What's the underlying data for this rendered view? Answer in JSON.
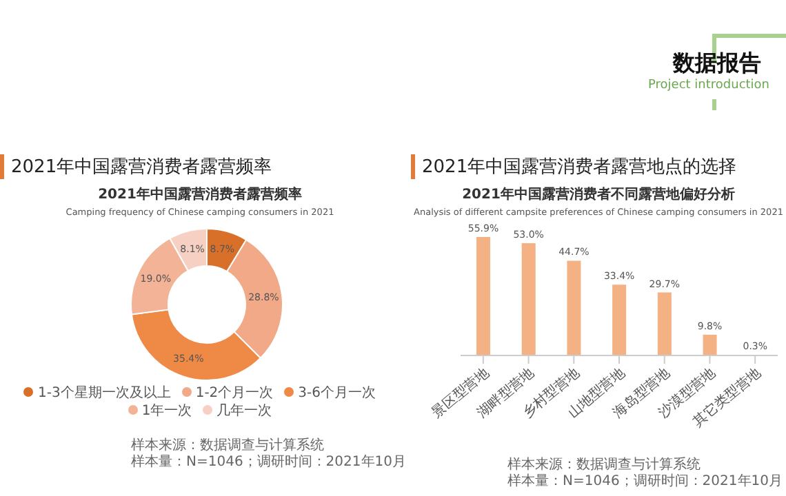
{
  "chart_data": [
    {
      "type": "other",
      "title": "数据报告",
      "subtitle": "Project introduction"
    },
    {
      "type": "donut",
      "title": "2021年中国露营消费者露营频率",
      "subtitle": "2021年中国露营消费者露营频率",
      "annotations": [
        "Camping frequency of Chinese camping consumers in 2021",
        "样本来源：数据调查与计算系统",
        "样本量：N=1046；调研时间：2021年10月"
      ],
      "categories": [
        "1-3个星期一次及以上",
        "1-2个月一次",
        "3-6个月一次",
        "1年一次",
        "几年一次"
      ],
      "values": [
        8.7,
        28.8,
        35.4,
        19.0,
        8.1
      ],
      "value_labels": [
        "8.7%",
        "28.8%",
        "35.4%",
        "19.0%",
        "8.1%"
      ],
      "colors": [
        "#d9702a",
        "#f2a987",
        "#ee8a45",
        "#f3b396",
        "#f6d0c2"
      ],
      "legend": "bottom"
    },
    {
      "type": "bar",
      "title": "2021年中国露营消费者露营地点的选择",
      "subtitle": "2021年中国露营消费者不同露营地偏好分析",
      "annotations": [
        "Analysis of different campsite preferences of Chinese camping consumers in 2021",
        "样本来源：数据调查与计算系统",
        "样本量：N=1046；调研时间：2021年10月"
      ],
      "categories": [
        "景区型营地",
        "湖畔型营地",
        "乡村型营地",
        "山地型营地",
        "海岛型营地",
        "沙漠型营地",
        "其它类型营地"
      ],
      "values": [
        55.9,
        53.0,
        44.7,
        33.4,
        29.7,
        9.8,
        0.3
      ],
      "value_labels": [
        "55.9%",
        "53.0%",
        "44.7%",
        "33.4%",
        "29.7%",
        "9.8%",
        "0.3%"
      ],
      "color": "#f4b183"
    }
  ]
}
